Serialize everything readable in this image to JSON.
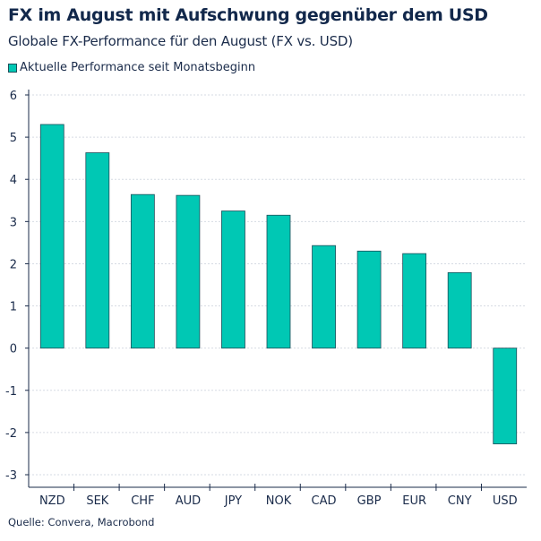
{
  "chart_data": {
    "type": "bar",
    "title": "FX im August mit Aufschwung gegenüber dem USD",
    "subtitle": "Globale FX-Performance für den August (FX vs. USD)",
    "legend": "Aktuelle Performance seit Monatsbeginn",
    "source": "Quelle: Convera, Macrobond",
    "categories": [
      "NZD",
      "SEK",
      "CHF",
      "AUD",
      "JPY",
      "NOK",
      "CAD",
      "GBP",
      "EUR",
      "CNY",
      "USD"
    ],
    "values": [
      5.3,
      4.63,
      3.64,
      3.62,
      3.25,
      3.15,
      2.43,
      2.3,
      2.24,
      1.79,
      -2.27
    ],
    "yticks": [
      "6",
      "5",
      "4",
      "3",
      "2",
      "1",
      "0",
      "-1",
      "-2",
      "-3"
    ],
    "ylim": [
      -3,
      6
    ],
    "grid": true,
    "xlabel": "",
    "ylabel": "",
    "colors": {
      "bar": "#00c8b4",
      "bar_edge": "#1d4f5a",
      "grid": "#d6dbe3"
    }
  }
}
